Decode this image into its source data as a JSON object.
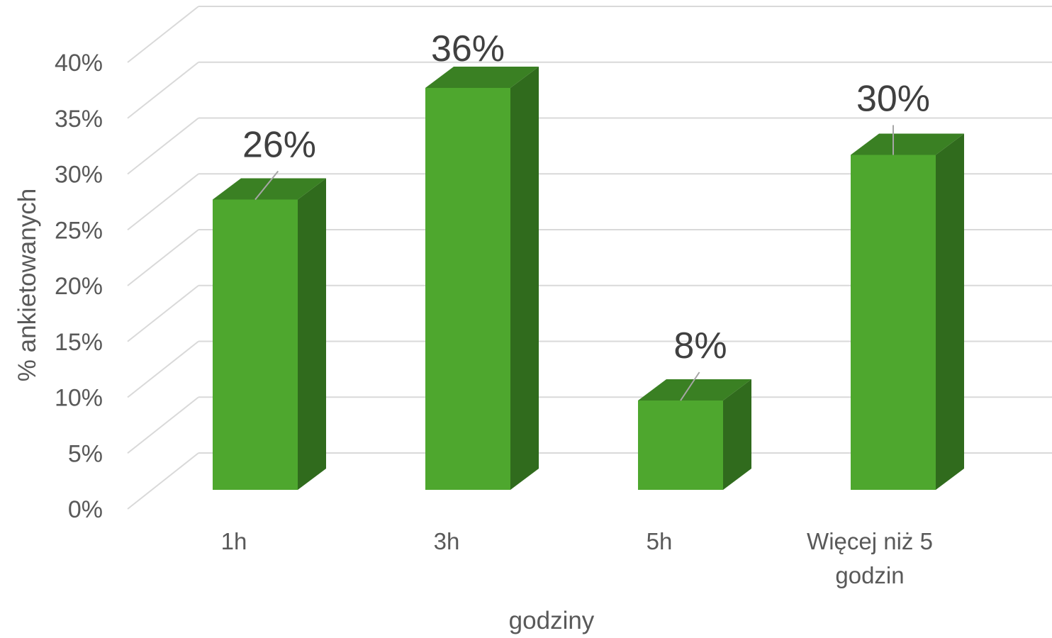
{
  "chart_data": {
    "type": "bar",
    "title": "",
    "xlabel": "godziny",
    "ylabel": "% ankietowanych",
    "categories": [
      "1h",
      "3h",
      "5h",
      "Więcej niż 5 godzin"
    ],
    "category_lines": [
      [
        "1h"
      ],
      [
        "3h"
      ],
      [
        "5h"
      ],
      [
        "Więcej niż 5",
        "godzin"
      ]
    ],
    "values": [
      26,
      36,
      8,
      30
    ],
    "data_labels": [
      "26%",
      "36%",
      "8%",
      "30%"
    ],
    "ylim": [
      0,
      40
    ],
    "y_ticks": [
      0,
      5,
      10,
      15,
      20,
      25,
      30,
      35,
      40
    ],
    "y_tick_labels": [
      "0%",
      "5%",
      "10%",
      "15%",
      "20%",
      "25%",
      "30%",
      "35%",
      "40%"
    ],
    "grid": true,
    "legend": "none",
    "style": "3d-column",
    "colors": {
      "bar_front": "#4ea72e",
      "bar_side": "#306b1d",
      "bar_top": "#3a8023",
      "grid": "#d9d9d9",
      "leader": "#a6a6a6"
    }
  }
}
